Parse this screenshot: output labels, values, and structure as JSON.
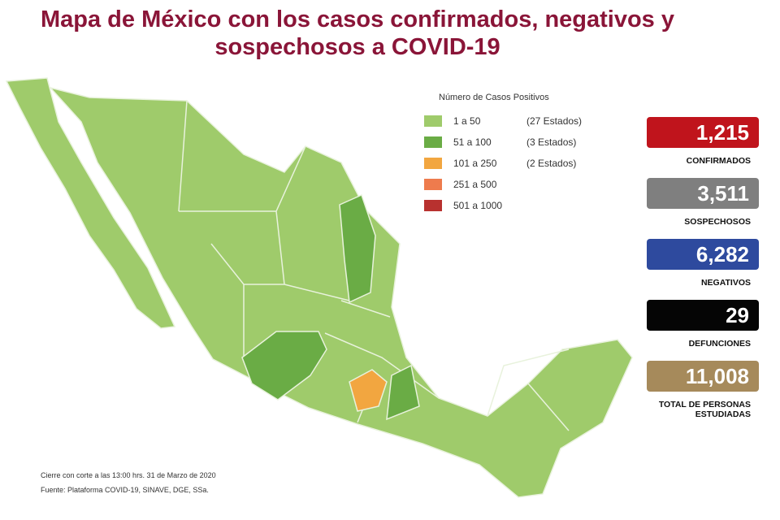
{
  "title": {
    "lines": [
      "Mapa de México con los casos confirmados, negativos y",
      "sospechosos a COVID-19"
    ],
    "color": "#8a1538"
  },
  "legend": {
    "title": "Número de Casos Positivos",
    "items": [
      {
        "range": "1 a 50",
        "note": "(27 Estados)",
        "color": "#9fcb6b"
      },
      {
        "range": "51 a 100",
        "note": "(3 Estados)",
        "color": "#6aac45"
      },
      {
        "range": "101 a 250",
        "note": "(2 Estados)",
        "color": "#f2a640"
      },
      {
        "range": "251 a 500",
        "color": "#ee7b4d"
      },
      {
        "range": "501 a 1000",
        "color": "#b8312f"
      }
    ]
  },
  "stats": [
    {
      "value": "1,215",
      "label": "CONFIRMADOS",
      "color": "#c0141c"
    },
    {
      "value": "3,511",
      "label": "SOSPECHOSOS",
      "color": "#7f7f7f"
    },
    {
      "value": "6,282",
      "label": "NEGATIVOS",
      "color": "#2e4a9e"
    },
    {
      "value": "29",
      "label": "DEFUNCIONES",
      "color": "#050505"
    },
    {
      "value": "11,008",
      "label": "TOTAL DE PERSONAS ESTUDIADAS",
      "color": "#a68a5b"
    }
  ],
  "footnotes": [
    "Cierre con corte a las 13:00 hrs. 31 de Marzo de 2020",
    "Fuente: Plataforma COVID-19, SINAVE, DGE, SSa."
  ]
}
